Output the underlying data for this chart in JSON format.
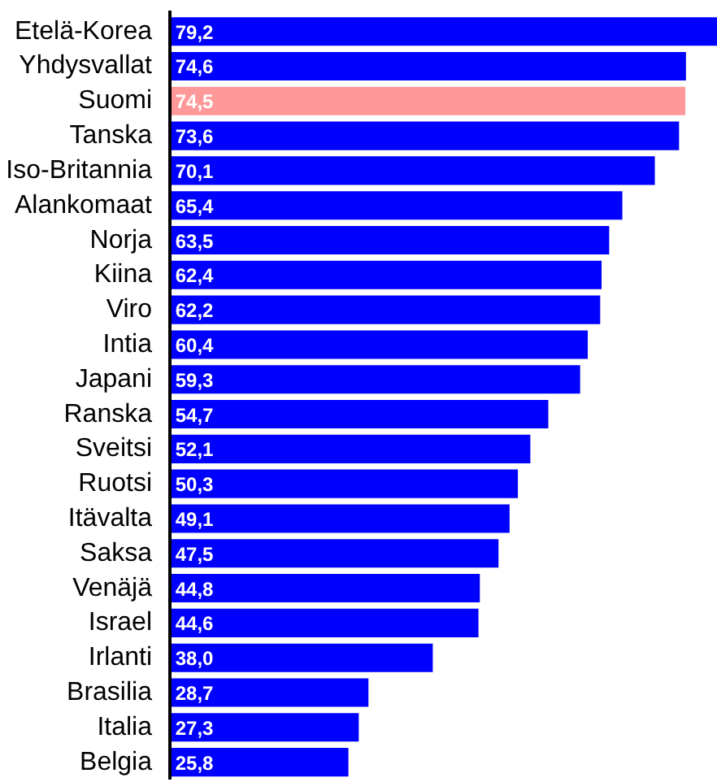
{
  "chart_data": {
    "type": "bar",
    "orientation": "horizontal",
    "categories": [
      "Etelä-Korea",
      "Yhdysvallat",
      "Suomi",
      "Tanska",
      "Iso-Britannia",
      "Alankomaat",
      "Norja",
      "Kiina",
      "Viro",
      "Intia",
      "Japani",
      "Ranska",
      "Sveitsi",
      "Ruotsi",
      "Itävalta",
      "Saksa",
      "Venäjä",
      "Israel",
      "Irlanti",
      "Brasilia",
      "Italia",
      "Belgia"
    ],
    "values": [
      79.2,
      74.6,
      74.5,
      73.6,
      70.1,
      65.4,
      63.5,
      62.4,
      62.2,
      60.4,
      59.3,
      54.7,
      52.1,
      50.3,
      49.1,
      47.5,
      44.8,
      44.6,
      38.0,
      28.7,
      27.3,
      25.8
    ],
    "colors": [
      "#0000ff",
      "#0000ff",
      "#ff9999",
      "#0000ff",
      "#0000ff",
      "#0000ff",
      "#0000ff",
      "#0000ff",
      "#0000ff",
      "#0000ff",
      "#0000ff",
      "#0000ff",
      "#0000ff",
      "#0000ff",
      "#0000ff",
      "#0000ff",
      "#0000ff",
      "#0000ff",
      "#0000ff",
      "#0000ff",
      "#0000ff",
      "#0000ff"
    ],
    "value_labels": [
      "79,2",
      "74,6",
      "74,5",
      "73,6",
      "70,1",
      "65,4",
      "63,5",
      "62,4",
      "62,2",
      "60,4",
      "59,3",
      "54,7",
      "52,1",
      "50,3",
      "49,1",
      "47,5",
      "44,8",
      "44,6",
      "38,0",
      "28,7",
      "27,3",
      "25,8"
    ]
  }
}
